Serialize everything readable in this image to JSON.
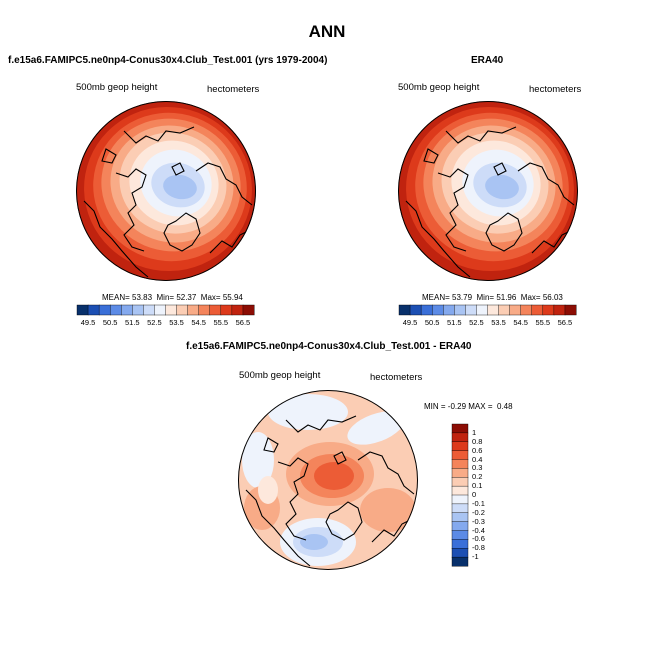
{
  "figure": {
    "title": "ANN"
  },
  "panels": [
    {
      "id": "model",
      "title": "f.e15a6.FAMIPC5.ne0np4-Conus30x4.Club_Test.001 (yrs 1979-2004)",
      "left_label": "500mb geop height",
      "right_label": "hectometers",
      "stats": {
        "mean_label": "MEAN=",
        "mean": "53.83",
        "min_label": "Min=",
        "min": "52.37",
        "max_label": "Max=",
        "max": "55.94"
      }
    },
    {
      "id": "obs",
      "title": "ERA40",
      "left_label": "500mb geop height",
      "right_label": "hectometers",
      "stats": {
        "mean_label": "MEAN=",
        "mean": "53.79",
        "min_label": "Min=",
        "min": "51.96",
        "max_label": "Max=",
        "max": "56.03"
      }
    },
    {
      "id": "diff",
      "title": "f.e15a6.FAMIPC5.ne0np4-Conus30x4.Club_Test.001 - ERA40",
      "left_label": "500mb geop height",
      "right_label": "hectometers",
      "stats": {
        "min_label": "MIN =",
        "min": "-0.29",
        "max_label": "MAX =",
        "max": "0.48"
      }
    }
  ],
  "colorbars": {
    "abs": {
      "labels": [
        "49.5",
        "50.5",
        "51.5",
        "52.5",
        "53.5",
        "54.5",
        "55.5",
        "56.5"
      ],
      "colors": [
        "#08306b",
        "#1c4fb3",
        "#3a6fd8",
        "#5c8be6",
        "#84a9ee",
        "#a9c4f3",
        "#cddcf8",
        "#eef3fc",
        "#fde8dc",
        "#fbcdb4",
        "#f8ab87",
        "#f4845b",
        "#ec5c36",
        "#dd3a1b",
        "#c0230f",
        "#8c0d04"
      ]
    },
    "diff": {
      "labels": [
        "1",
        "0.8",
        "0.6",
        "0.4",
        "0.3",
        "0.2",
        "0.1",
        "0",
        "-0.1",
        "-0.2",
        "-0.3",
        "-0.4",
        "-0.6",
        "-0.8",
        "-1"
      ],
      "colors": [
        "#8c0d04",
        "#c0230f",
        "#dd3a1b",
        "#ec5c36",
        "#f4845b",
        "#f8ab87",
        "#fbcdb4",
        "#fde8dc",
        "#eef3fc",
        "#cddcf8",
        "#a9c4f3",
        "#84a9ee",
        "#5c8be6",
        "#3a6fd8",
        "#1c4fb3",
        "#08306b"
      ]
    }
  },
  "chart_data": [
    {
      "type": "heatmap",
      "title": "f.e15a6.FAMIPC5.ne0np4-Conus30x4.Club_Test.001 (yrs 1979-2004)",
      "variable": "500mb geop height",
      "units": "hectometers",
      "projection": "polar stereographic",
      "mean": 53.83,
      "min": 52.37,
      "max": 55.94,
      "levels": [
        49.5,
        50.5,
        51.5,
        52.5,
        53.5,
        54.5,
        55.5,
        56.5
      ]
    },
    {
      "type": "heatmap",
      "title": "ERA40",
      "variable": "500mb geop height",
      "units": "hectometers",
      "projection": "polar stereographic",
      "mean": 53.79,
      "min": 51.96,
      "max": 56.03,
      "levels": [
        49.5,
        50.5,
        51.5,
        52.5,
        53.5,
        54.5,
        55.5,
        56.5
      ]
    },
    {
      "type": "heatmap",
      "title": "f.e15a6.FAMIPC5.ne0np4-Conus30x4.Club_Test.001 - ERA40",
      "variable": "500mb geop height",
      "units": "hectometers",
      "projection": "polar stereographic",
      "min": -0.29,
      "max": 0.48,
      "levels": [
        -1,
        -0.8,
        -0.6,
        -0.4,
        -0.3,
        -0.2,
        -0.1,
        0,
        0.1,
        0.2,
        0.3,
        0.4,
        0.6,
        0.8,
        1
      ]
    }
  ]
}
